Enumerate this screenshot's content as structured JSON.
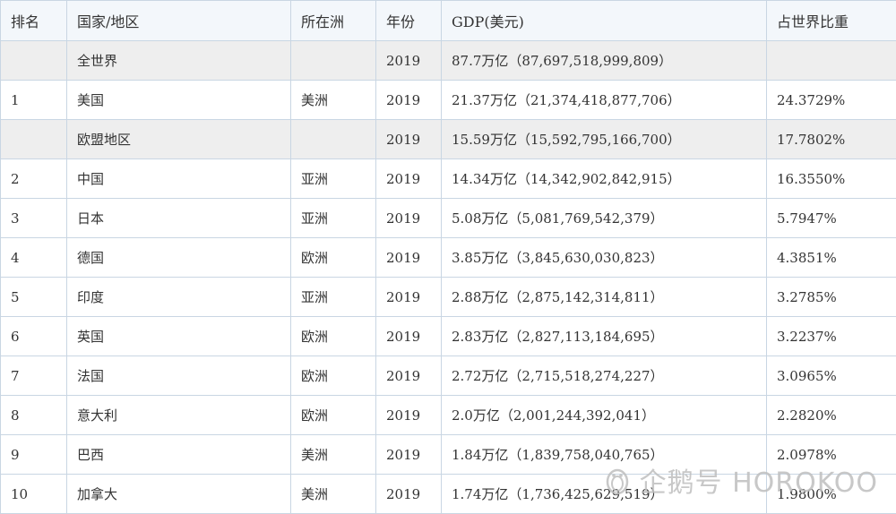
{
  "table": {
    "headers": [
      "排名",
      "国家/地区",
      "所在洲",
      "年份",
      "GDP(美元)",
      "占世界比重"
    ],
    "rows": [
      {
        "rank": "",
        "country": "全世界",
        "continent": "",
        "year": "2019",
        "gdp": "87.7万亿（87,697,518,999,809）",
        "share": "",
        "shaded": true
      },
      {
        "rank": "1",
        "country": "美国",
        "continent": "美洲",
        "year": "2019",
        "gdp": "21.37万亿（21,374,418,877,706）",
        "share": "24.3729%",
        "shaded": false
      },
      {
        "rank": "",
        "country": "欧盟地区",
        "continent": "",
        "year": "2019",
        "gdp": "15.59万亿（15,592,795,166,700）",
        "share": "17.7802%",
        "shaded": true
      },
      {
        "rank": "2",
        "country": "中国",
        "continent": "亚洲",
        "year": "2019",
        "gdp": "14.34万亿（14,342,902,842,915）",
        "share": "16.3550%",
        "shaded": false
      },
      {
        "rank": "3",
        "country": "日本",
        "continent": "亚洲",
        "year": "2019",
        "gdp": "5.08万亿（5,081,769,542,379）",
        "share": "5.7947%",
        "shaded": false
      },
      {
        "rank": "4",
        "country": "德国",
        "continent": "欧洲",
        "year": "2019",
        "gdp": "3.85万亿（3,845,630,030,823）",
        "share": "4.3851%",
        "shaded": false
      },
      {
        "rank": "5",
        "country": "印度",
        "continent": "亚洲",
        "year": "2019",
        "gdp": "2.88万亿（2,875,142,314,811）",
        "share": "3.2785%",
        "shaded": false
      },
      {
        "rank": "6",
        "country": "英国",
        "continent": "欧洲",
        "year": "2019",
        "gdp": "2.83万亿（2,827,113,184,695）",
        "share": "3.2237%",
        "shaded": false
      },
      {
        "rank": "7",
        "country": "法国",
        "continent": "欧洲",
        "year": "2019",
        "gdp": "2.72万亿（2,715,518,274,227）",
        "share": "3.0965%",
        "shaded": false
      },
      {
        "rank": "8",
        "country": "意大利",
        "continent": "欧洲",
        "year": "2019",
        "gdp": "2.0万亿（2,001,244,392,041）",
        "share": "2.2820%",
        "shaded": false
      },
      {
        "rank": "9",
        "country": "巴西",
        "continent": "美洲",
        "year": "2019",
        "gdp": "1.84万亿（1,839,758,040,765）",
        "share": "2.0978%",
        "shaded": false
      },
      {
        "rank": "10",
        "country": "加拿大",
        "continent": "美洲",
        "year": "2019",
        "gdp": "1.74万亿（1,736,425,629,519）",
        "share": "1.9800%",
        "shaded": false
      }
    ]
  },
  "watermark": {
    "text": "企鹅号 HOROKOO",
    "icon": "penguin-icon"
  }
}
